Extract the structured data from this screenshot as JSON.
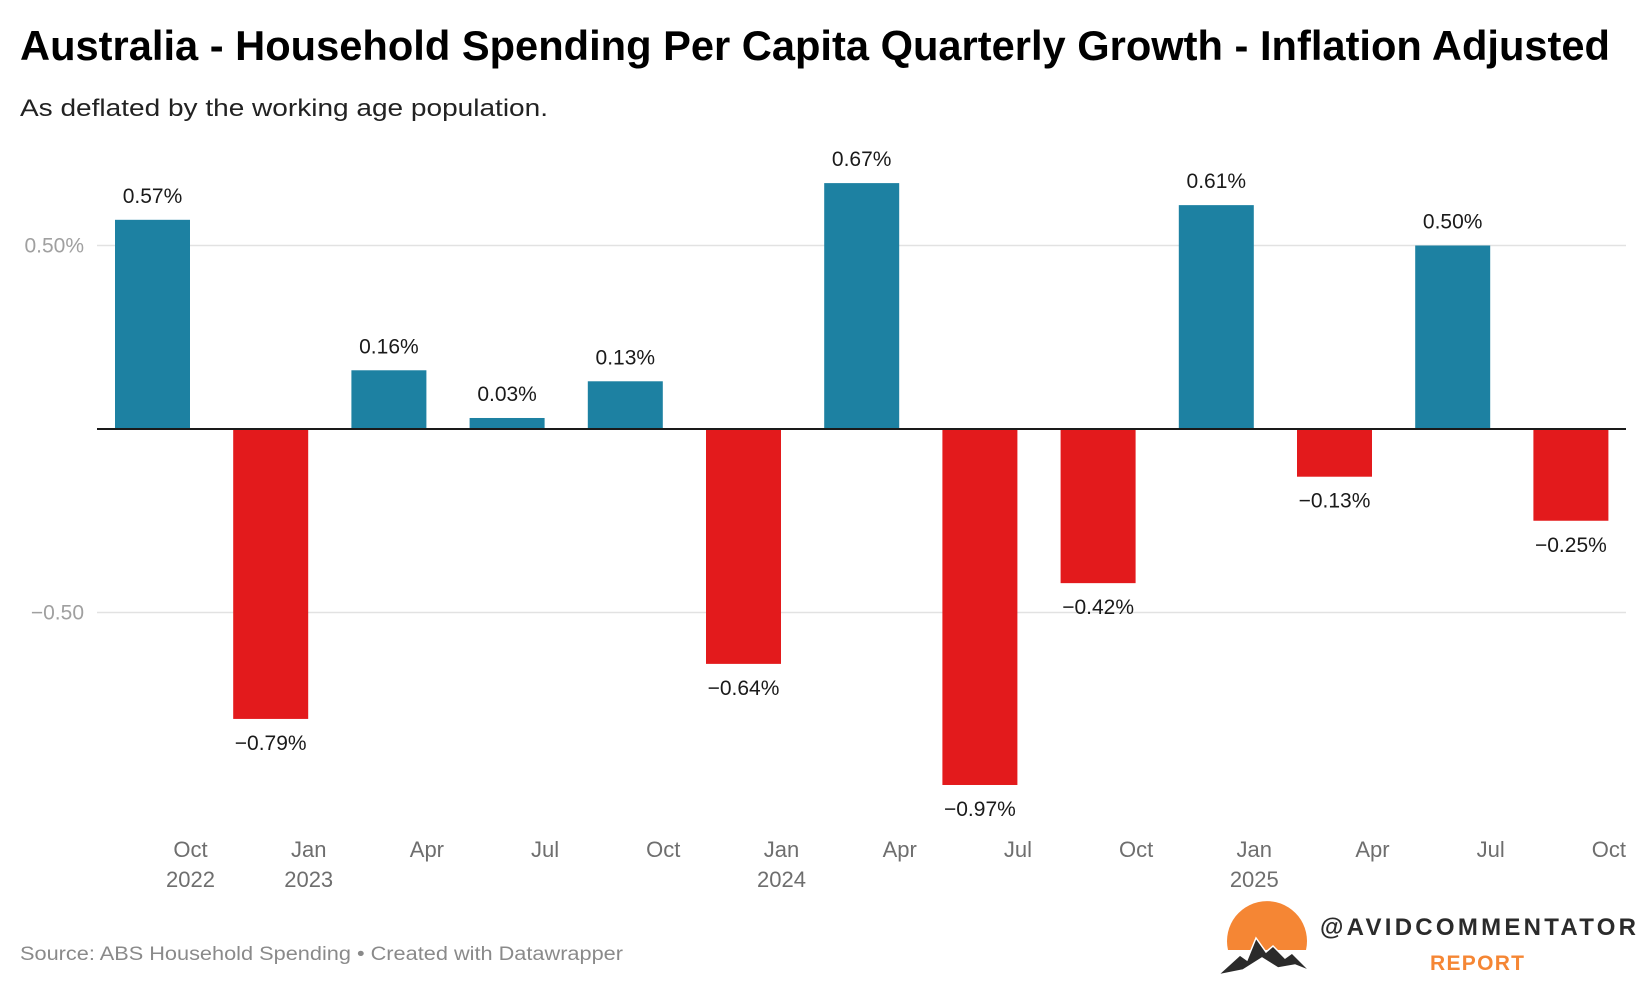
{
  "chart_data": {
    "type": "bar",
    "title": "Australia - Household Spending Per Capita Quarterly Growth - Inflation Adjusted",
    "subtitle": "As deflated by the working age population.",
    "source": "Source: ABS Household Spending • Created with Datawrapper",
    "categories": [
      "Oct 2022",
      "Jan 2023",
      "Apr 2023",
      "Jul 2023",
      "Oct 2023",
      "Jan 2024",
      "Apr 2024",
      "Jul 2024",
      "Oct 2024",
      "Jan 2025",
      "Apr 2025",
      "Jul 2025",
      "Oct 2025"
    ],
    "tick_labels": [
      {
        "month": "Oct",
        "year": "2022"
      },
      {
        "month": "Jan",
        "year": "2023"
      },
      {
        "month": "Apr",
        "year": ""
      },
      {
        "month": "Jul",
        "year": ""
      },
      {
        "month": "Oct",
        "year": ""
      },
      {
        "month": "Jan",
        "year": "2024"
      },
      {
        "month": "Apr",
        "year": ""
      },
      {
        "month": "Jul",
        "year": ""
      },
      {
        "month": "Oct",
        "year": ""
      },
      {
        "month": "Jan",
        "year": "2025"
      },
      {
        "month": "Apr",
        "year": ""
      },
      {
        "month": "Jul",
        "year": ""
      },
      {
        "month": "Oct",
        "year": ""
      }
    ],
    "values": [
      0.57,
      -0.79,
      0.16,
      0.03,
      0.13,
      -0.64,
      0.67,
      -0.97,
      -0.42,
      0.61,
      -0.13,
      0.5,
      -0.25
    ],
    "data_labels": [
      "0.57%",
      "−0.79%",
      "0.16%",
      "0.03%",
      "0.13%",
      "−0.64%",
      "0.67%",
      "−0.97%",
      "−0.42%",
      "0.61%",
      "−0.13%",
      "0.50%",
      "−0.25%"
    ],
    "yticks": [
      {
        "value": 0.5,
        "label": "0.50%"
      },
      {
        "value": -0.5,
        "label": "−0.50"
      }
    ],
    "ylim": [
      -1.0,
      0.72
    ],
    "grid": true,
    "colors": {
      "positive": "#1d81a2",
      "negative": "#e31a1c"
    }
  },
  "logo": {
    "handle": "@AVIDCOMMENTATOR",
    "sub": "REPORT",
    "sun_color": "#f58634"
  }
}
